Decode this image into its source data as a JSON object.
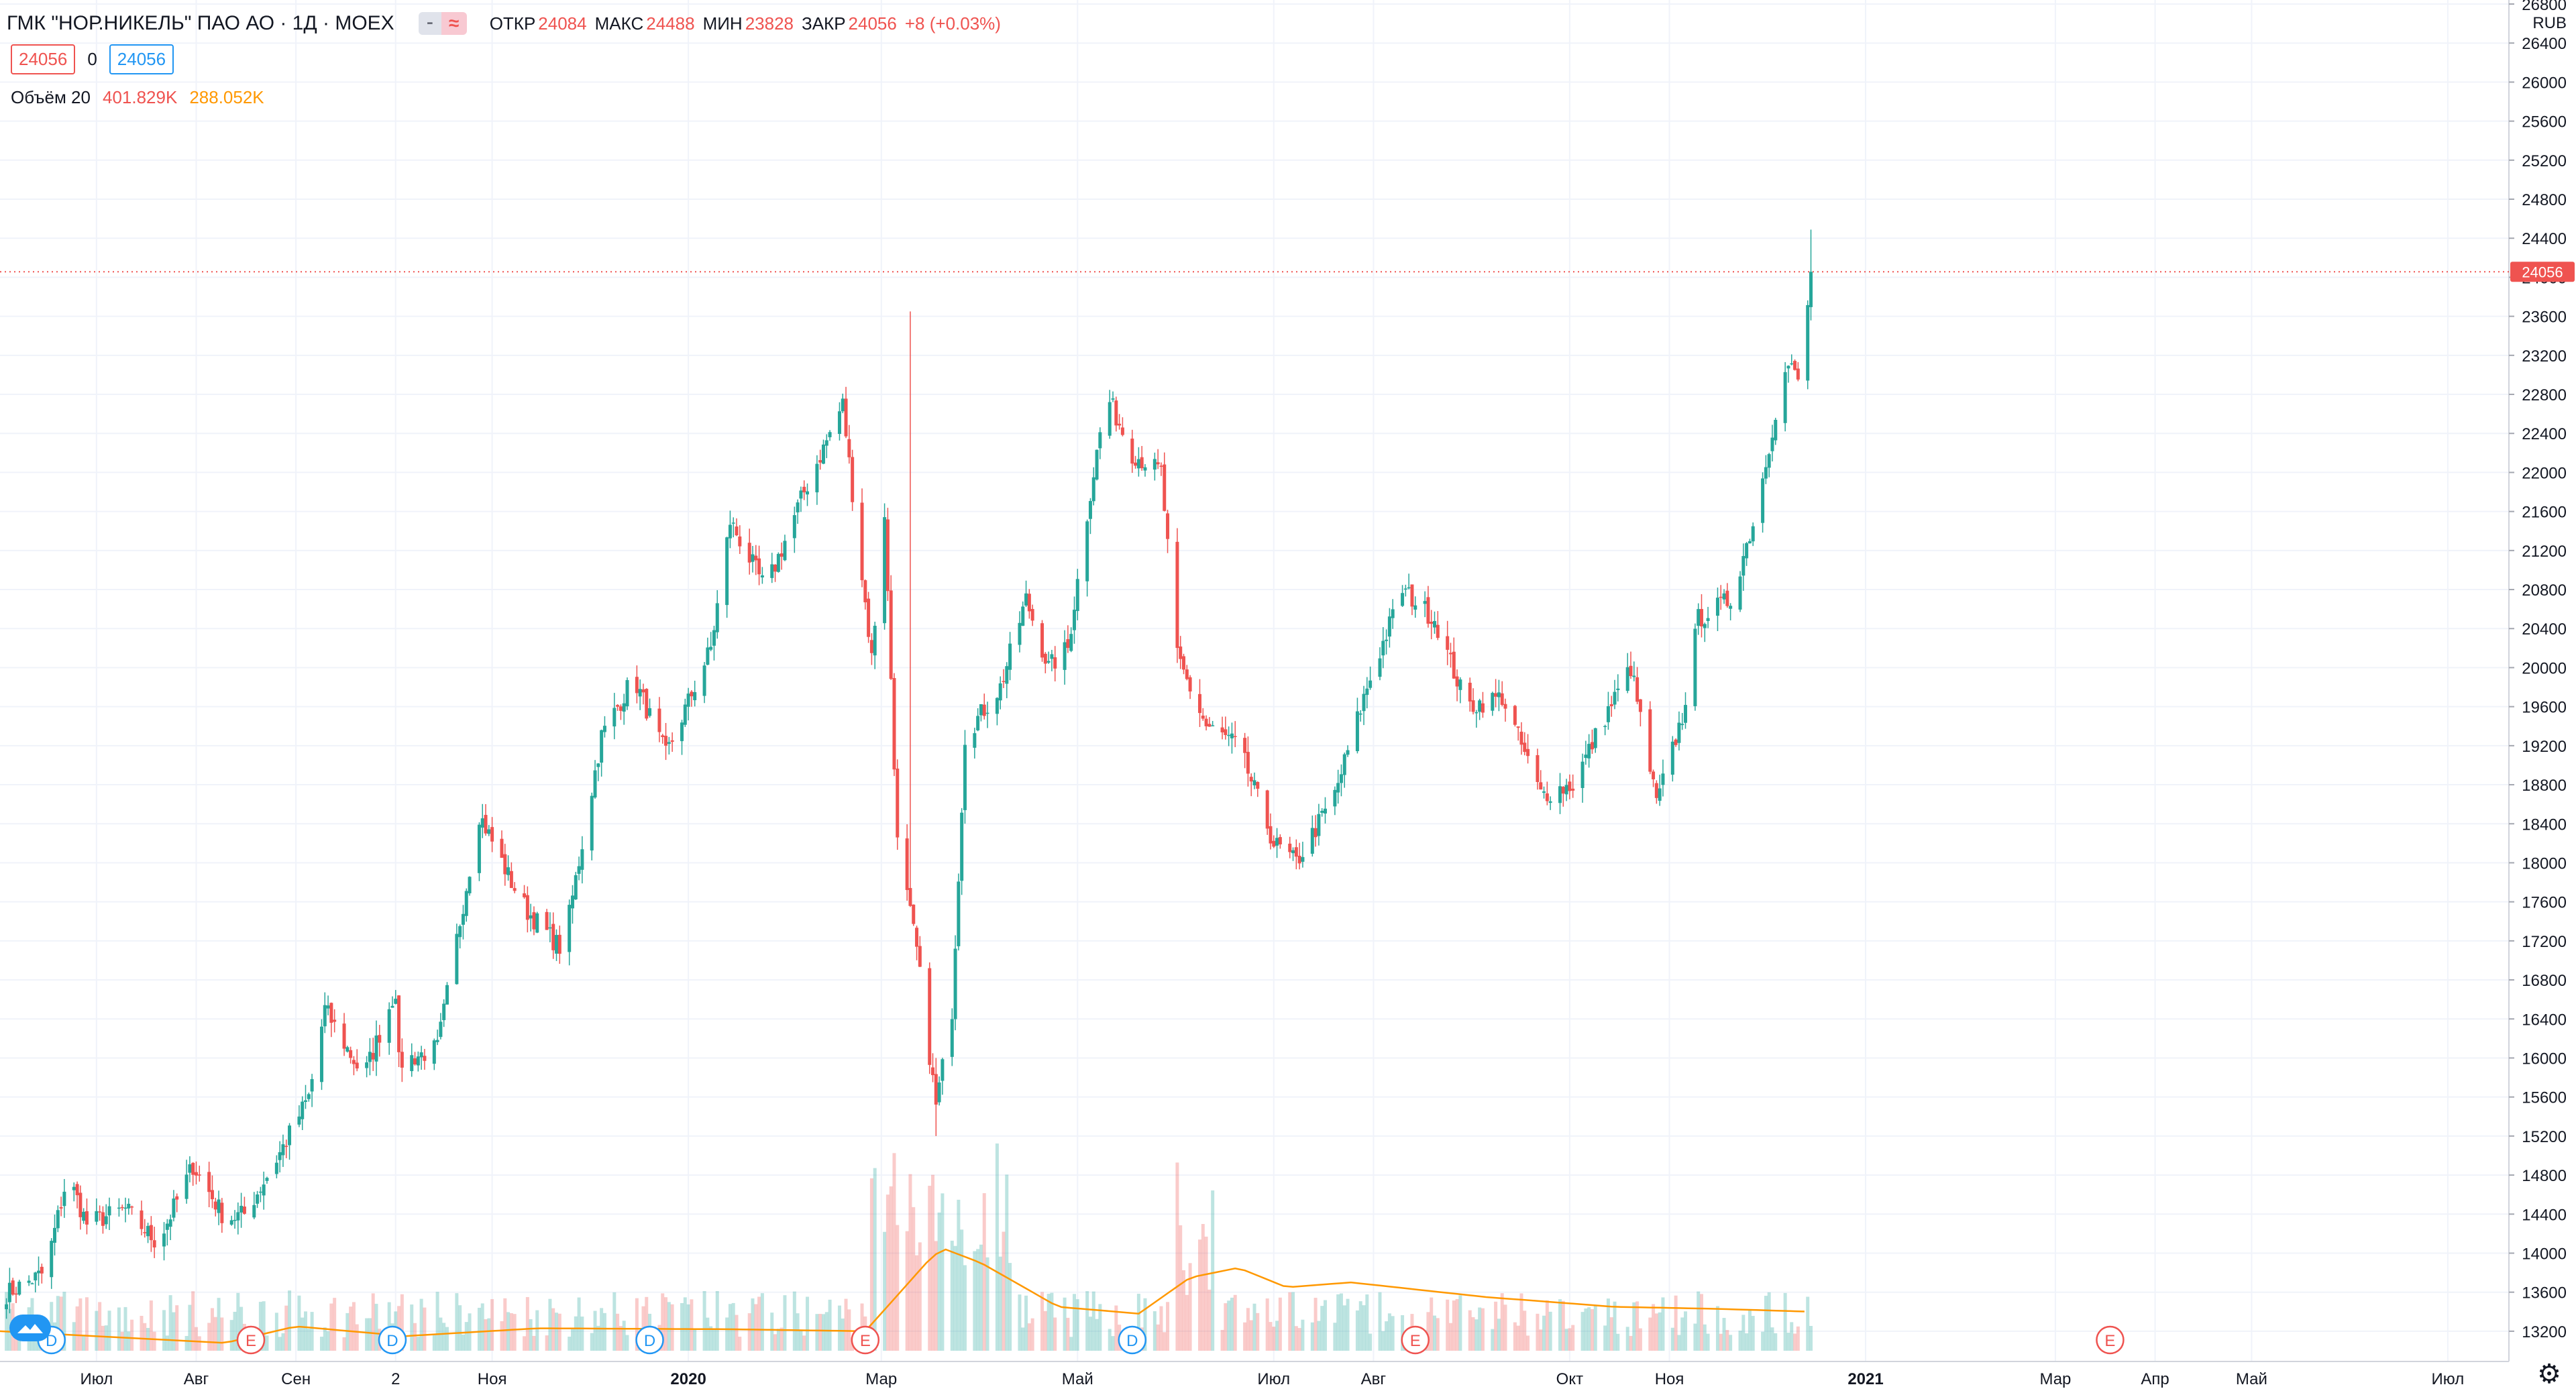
{
  "header": {
    "symbol": "ГМК \"НОР.НИКЕЛЬ\" ПАО АО · 1Д · MOEX",
    "toggle_left": "⁃",
    "toggle_right": "≈",
    "open_label": "ОТКР",
    "open": "24084",
    "high_label": "МАКС",
    "high": "24488",
    "low_label": "МИН",
    "low": "23828",
    "close_label": "ЗАКР",
    "close": "24056",
    "change": "+8 (+0.03%)"
  },
  "price_boxes": {
    "bid": "24056",
    "separator": "0",
    "ask": "24056"
  },
  "volume_legend": {
    "label": "Объём 20",
    "volume": "401.829K",
    "ma": "288.052K"
  },
  "currency": "RUB",
  "last_price_label": "24056",
  "colors": {
    "up": "#26a69a",
    "down": "#ef5350",
    "ma": "#ff9800",
    "grid": "#f0f3fa",
    "event_e": "#ef5350",
    "event_d": "#2196f3",
    "price_line": "#ef5350"
  },
  "icons": {
    "settings": "gear-icon",
    "logo": "logo-icon"
  },
  "chart_data": {
    "type": "candlestick",
    "y_axis": {
      "range": [
        13000,
        26800
      ],
      "ticks": [
        13200,
        13600,
        14000,
        14400,
        14800,
        15200,
        15600,
        16000,
        16400,
        16800,
        17200,
        17600,
        18000,
        18400,
        18800,
        19200,
        19600,
        20000,
        20400,
        20800,
        21200,
        21600,
        22000,
        22400,
        22800,
        23200,
        23600,
        24000,
        24400,
        24800,
        25200,
        25600,
        26000,
        26400,
        26800
      ],
      "tick_labels": [
        "13200",
        "13600",
        "14000",
        "14400",
        "14800",
        "15200",
        "15600",
        "16000",
        "16400",
        "16800",
        "17200",
        "17600",
        "18000",
        "18400",
        "18800",
        "19200",
        "19600",
        "20000",
        "20400",
        "20800",
        "21200",
        "21600",
        "22000",
        "22400",
        "22800",
        "23200",
        "23600",
        "24000",
        "24400",
        "24800",
        "25200",
        "25600",
        "26000",
        "26400",
        "26800"
      ]
    },
    "x_axis": {
      "ticks": [
        {
          "date": "2019-07-01",
          "label": "Июл"
        },
        {
          "date": "2019-08-01",
          "label": "Авг"
        },
        {
          "date": "2019-09-01",
          "label": "Сен"
        },
        {
          "date": "2019-10-02",
          "label": "2"
        },
        {
          "date": "2019-11-01",
          "label": "Ноя"
        },
        {
          "date": "2020-01-01",
          "label": "2020"
        },
        {
          "date": "2020-03-01",
          "label": "Мар"
        },
        {
          "date": "2020-05-01",
          "label": "Май"
        },
        {
          "date": "2020-07-01",
          "label": "Июл"
        },
        {
          "date": "2020-08-01",
          "label": "Авг"
        },
        {
          "date": "2020-10-01",
          "label": "Окт"
        },
        {
          "date": "2020-11-01",
          "label": "Ноя"
        },
        {
          "date": "2021-01-01",
          "label": "2021"
        },
        {
          "date": "2021-03-01",
          "label": "Мар"
        },
        {
          "date": "2021-04-01",
          "label": "Апр"
        },
        {
          "date": "2021-05-01",
          "label": "Май"
        },
        {
          "date": "2021-07-01",
          "label": "Июл"
        }
      ],
      "range": [
        "2019-06-01",
        "2021-07-20"
      ]
    },
    "close_anchors": [
      [
        "2019-06-01",
        13550
      ],
      [
        "2019-06-15",
        13800
      ],
      [
        "2019-06-22",
        14800
      ],
      [
        "2019-06-28",
        14300
      ],
      [
        "2019-07-10",
        14450
      ],
      [
        "2019-07-20",
        14100
      ],
      [
        "2019-07-31",
        14900
      ],
      [
        "2019-08-10",
        14350
      ],
      [
        "2019-08-16",
        14400
      ],
      [
        "2019-08-25",
        14900
      ],
      [
        "2019-09-05",
        15600
      ],
      [
        "2019-09-10",
        16500
      ],
      [
        "2019-09-22",
        15800
      ],
      [
        "2019-10-02",
        16700
      ],
      [
        "2019-10-03",
        15950
      ],
      [
        "2019-10-15",
        16100
      ],
      [
        "2019-10-22",
        17400
      ],
      [
        "2019-10-28",
        18500
      ],
      [
        "2019-11-07",
        17800
      ],
      [
        "2019-11-12",
        17500
      ],
      [
        "2019-11-23",
        17100
      ],
      [
        "2019-12-05",
        19300
      ],
      [
        "2019-12-15",
        19900
      ],
      [
        "2019-12-25",
        19100
      ],
      [
        "2020-01-08",
        20200
      ],
      [
        "2020-01-14",
        21500
      ],
      [
        "2020-01-25",
        20800
      ],
      [
        "2020-02-06",
        21800
      ],
      [
        "2020-02-18",
        22700
      ],
      [
        "2020-02-22",
        21500
      ],
      [
        "2020-02-27",
        20100
      ],
      [
        "2020-03-02",
        21600
      ],
      [
        "2020-03-06",
        18200
      ],
      [
        "2020-03-12",
        17100
      ],
      [
        "2020-03-18",
        15500
      ],
      [
        "2020-03-23",
        16500
      ],
      [
        "2020-03-27",
        19300
      ],
      [
        "2020-04-07",
        19800
      ],
      [
        "2020-04-15",
        20700
      ],
      [
        "2020-04-22",
        20000
      ],
      [
        "2020-04-28",
        20200
      ],
      [
        "2020-05-05",
        21800
      ],
      [
        "2020-05-10",
        22800
      ],
      [
        "2020-05-18",
        22200
      ],
      [
        "2020-05-27",
        22000
      ],
      [
        "2020-06-01",
        20100
      ],
      [
        "2020-06-10",
        19400
      ],
      [
        "2020-06-20",
        19200
      ],
      [
        "2020-07-01",
        18200
      ],
      [
        "2020-07-08",
        18000
      ],
      [
        "2020-07-20",
        18700
      ],
      [
        "2020-07-30",
        19800
      ],
      [
        "2020-08-10",
        20800
      ],
      [
        "2020-08-20",
        20500
      ],
      [
        "2020-08-30",
        19600
      ],
      [
        "2020-09-10",
        19700
      ],
      [
        "2020-09-22",
        18700
      ],
      [
        "2020-10-02",
        18800
      ],
      [
        "2020-10-12",
        19500
      ],
      [
        "2020-10-20",
        20000
      ],
      [
        "2020-10-28",
        18600
      ],
      [
        "2020-11-05",
        19500
      ],
      [
        "2020-11-10",
        20500
      ],
      [
        "2020-11-20",
        20700
      ],
      [
        "2020-11-28",
        21600
      ],
      [
        "2020-12-05",
        22800
      ],
      [
        "2020-12-08",
        23100
      ],
      [
        "2020-12-12",
        22900
      ],
      [
        "2020-12-15",
        24056
      ]
    ],
    "notable_wicks": [
      {
        "date": "2020-03-10",
        "high": 23650,
        "low": 19200
      },
      {
        "date": "2020-03-18",
        "high": 16000,
        "low": 15200
      },
      {
        "date": "2020-12-15",
        "high": 24488,
        "low": 23828
      }
    ],
    "volume_ma_anchors": [
      [
        "2019-06-01",
        13200
      ],
      [
        "2019-08-10",
        13080
      ],
      [
        "2019-09-01",
        13250
      ],
      [
        "2019-10-05",
        13150
      ],
      [
        "2019-11-15",
        13230
      ],
      [
        "2020-01-15",
        13220
      ],
      [
        "2020-02-25",
        13200
      ],
      [
        "2020-03-15",
        13900
      ],
      [
        "2020-03-20",
        14050
      ],
      [
        "2020-04-01",
        13900
      ],
      [
        "2020-04-25",
        13450
      ],
      [
        "2020-05-20",
        13380
      ],
      [
        "2020-06-05",
        13750
      ],
      [
        "2020-06-20",
        13850
      ],
      [
        "2020-07-05",
        13650
      ],
      [
        "2020-07-25",
        13700
      ],
      [
        "2020-09-05",
        13550
      ],
      [
        "2020-10-15",
        13450
      ],
      [
        "2020-11-15",
        13430
      ],
      [
        "2020-12-15",
        13400
      ]
    ],
    "events": [
      {
        "date": "2019-06-17",
        "type": "D"
      },
      {
        "date": "2019-08-18",
        "type": "E"
      },
      {
        "date": "2019-10-01",
        "type": "D"
      },
      {
        "date": "2019-12-20",
        "type": "D"
      },
      {
        "date": "2020-02-25",
        "type": "E"
      },
      {
        "date": "2020-05-18",
        "type": "D"
      },
      {
        "date": "2020-08-14",
        "type": "E"
      },
      {
        "date": "2021-03-18",
        "type": "E"
      }
    ],
    "last_close": 24056
  }
}
